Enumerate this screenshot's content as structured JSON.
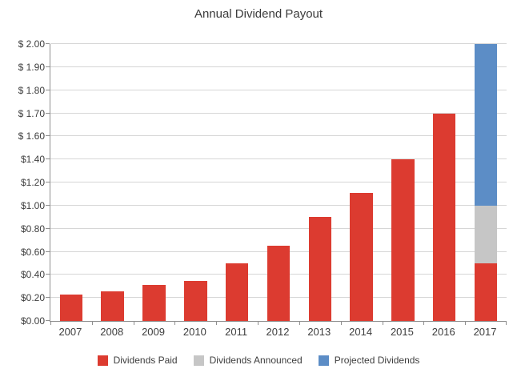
{
  "chart_data": {
    "type": "bar",
    "stacked": true,
    "title": "Annual Dividend Payout",
    "categories": [
      "2007",
      "2008",
      "2009",
      "2010",
      "2011",
      "2012",
      "2013",
      "2014",
      "2015",
      "2016",
      "2017"
    ],
    "series": [
      {
        "name": "Dividends Paid",
        "color": "#dc3b30",
        "values": [
          0.23,
          0.26,
          0.31,
          0.35,
          0.5,
          0.65,
          0.9,
          1.11,
          1.4,
          1.7,
          0.5
        ]
      },
      {
        "name": "Dividends Announced",
        "color": "#c6c6c6",
        "values": [
          0,
          0,
          0,
          0,
          0,
          0,
          0,
          0,
          0,
          0,
          0.5
        ]
      },
      {
        "name": "Projected Dividends",
        "color": "#5c8dc6",
        "values": [
          0,
          0,
          0,
          0,
          0,
          0,
          0,
          0,
          0,
          0,
          1.0
        ]
      }
    ],
    "y_axis": {
      "ticks": [
        {
          "value": 0.0,
          "label": "$0.00"
        },
        {
          "value": 0.2,
          "label": "$0.20"
        },
        {
          "value": 0.4,
          "label": "$0.40"
        },
        {
          "value": 0.6,
          "label": "$0.60"
        },
        {
          "value": 0.8,
          "label": "$0.80"
        },
        {
          "value": 1.0,
          "label": "$1.00"
        },
        {
          "value": 1.2,
          "label": "$1.20"
        },
        {
          "value": 1.4,
          "label": "$1.40"
        },
        {
          "value": 1.6,
          "label": "$ 1.60"
        },
        {
          "value": 1.7,
          "label": "$ 1.70"
        },
        {
          "value": 1.8,
          "label": "$ 1.80"
        },
        {
          "value": 1.9,
          "label": "$ 1.90"
        },
        {
          "value": 2.0,
          "label": "$ 2.00"
        }
      ],
      "scale_note": "non-linear axis: $0.20 steps from $0.00 to $1.60, then $0.10 steps to $2.00, evenly spaced gridlines"
    },
    "legend": [
      "Dividends Paid",
      "Dividends Announced",
      "Projected Dividends"
    ],
    "legend_position": "bottom",
    "grid": true
  },
  "colors": {
    "paid_red": "#dc3b30",
    "announced_gray": "#c6c6c6",
    "projected_blue": "#5c8dc6",
    "gridline": "#d6d6d6",
    "axis": "#8f8f8f",
    "text": "#3d3d3d",
    "background": "#ffffff"
  }
}
